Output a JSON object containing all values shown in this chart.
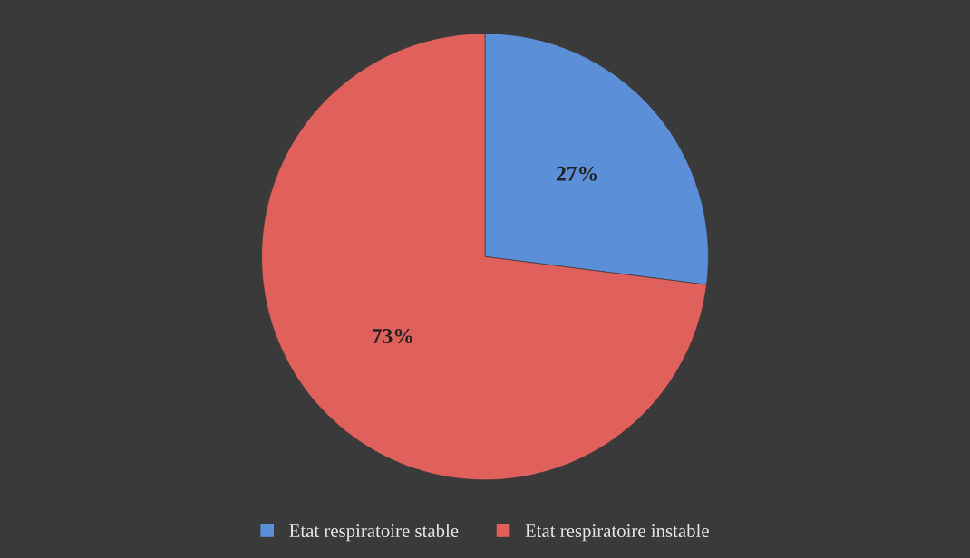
{
  "chart_data": {
    "type": "pie",
    "categories": [
      "Etat respiratoire stable",
      "Etat respiratoire instable"
    ],
    "values": [
      27,
      73
    ],
    "colors": [
      "#5b8fd8",
      "#e0605c"
    ],
    "value_labels": [
      "27%",
      "73%"
    ],
    "legend": "bottom"
  }
}
